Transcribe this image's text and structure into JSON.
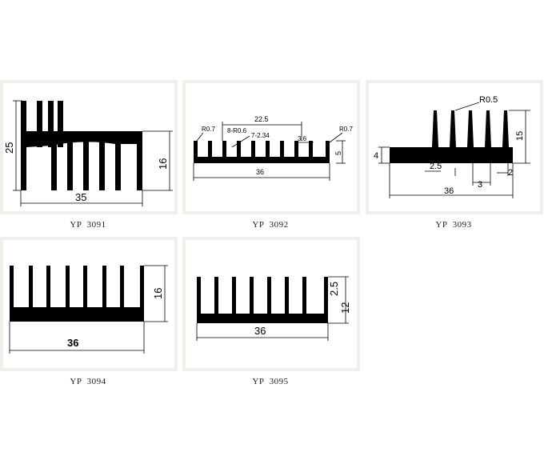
{
  "profiles": [
    {
      "code": "YP  3091",
      "dims": {
        "height_total": "25",
        "height_right": "16",
        "width": "35"
      }
    },
    {
      "code": "YP  3092",
      "dims": {
        "r_left": "R0.7",
        "span": "22.5",
        "fin_radius": "8-R0.6",
        "fin_spec": "7-2.34",
        "gap": "3.6",
        "r_right": "R0.7",
        "height": "5",
        "width": "36"
      }
    },
    {
      "code": "YP  3093",
      "dims": {
        "radius": "R0.5",
        "height": "15",
        "base": "4",
        "edge": "2.5",
        "pitch": "3",
        "fin": "2",
        "width": "36"
      }
    },
    {
      "code": "YP  3094",
      "dims": {
        "height": "16",
        "width": "36"
      }
    },
    {
      "code": "YP  3095",
      "dims": {
        "base": "2.5",
        "height": "12",
        "width": "36"
      }
    }
  ]
}
